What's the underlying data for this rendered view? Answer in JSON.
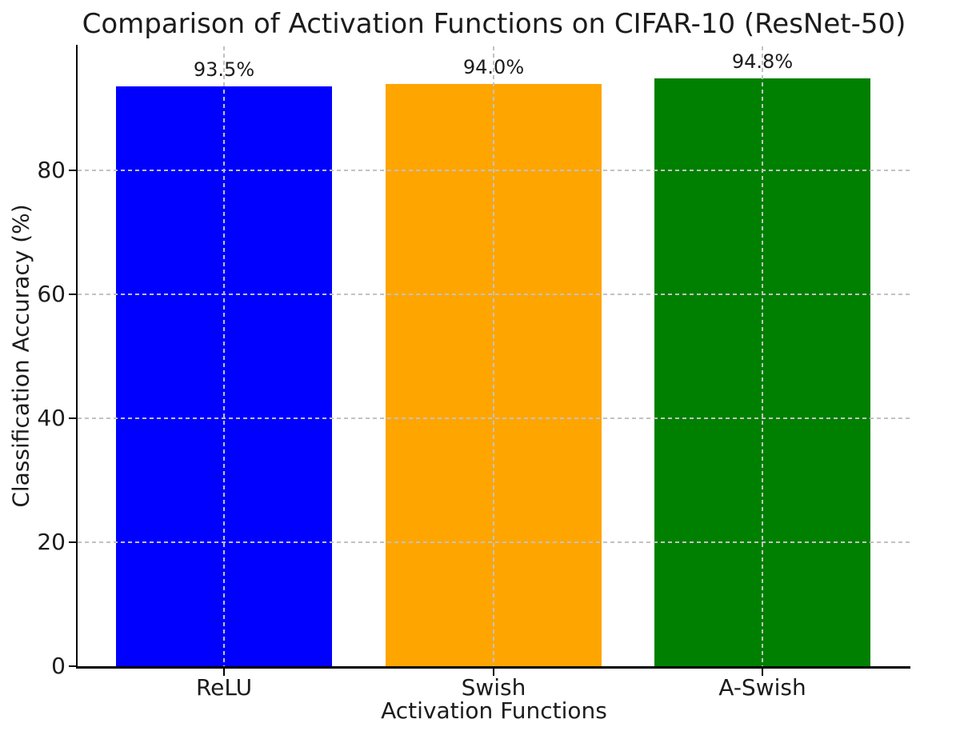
{
  "chart_data": {
    "type": "bar",
    "title": "Comparison of Activation Functions on CIFAR-10 (ResNet-50)",
    "xlabel": "Activation Functions",
    "ylabel": "Classification Accuracy (%)",
    "categories": [
      "ReLU",
      "Swish",
      "A-Swish"
    ],
    "values": [
      93.5,
      94.0,
      94.8
    ],
    "value_labels": [
      "93.5%",
      "94.0%",
      "94.8%"
    ],
    "bar_colors": [
      "#0000ff",
      "#ffa500",
      "#008000"
    ],
    "ylim": [
      0,
      100
    ],
    "yticks": [
      0,
      20,
      40,
      60,
      80
    ],
    "ytick_labels": [
      "0",
      "20",
      "40",
      "60",
      "80"
    ],
    "grid": {
      "style": "dashed",
      "axes": "both",
      "color": "#c2c2c2",
      "drawn_over_bars": true
    },
    "legend": "none",
    "background_color": "#ffffff",
    "text_color": "#1c1c1c",
    "spine_color": "#000000"
  }
}
